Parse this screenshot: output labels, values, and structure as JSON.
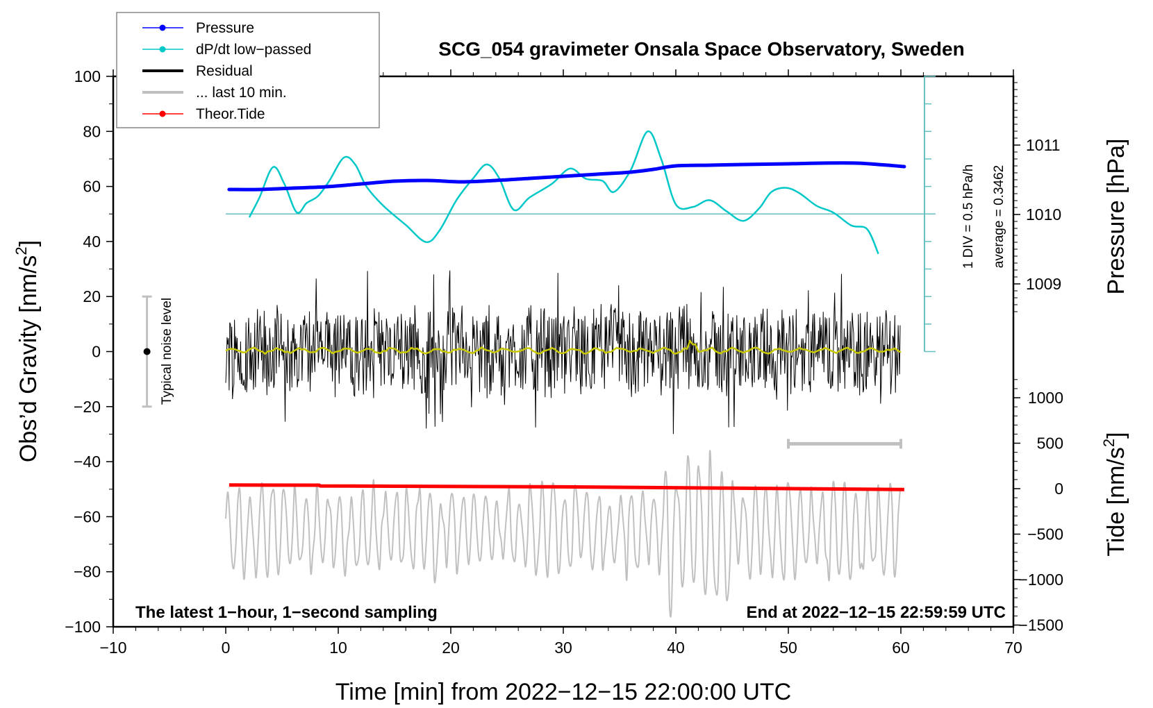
{
  "chart_data": {
    "type": "line",
    "title": "SCG_054 gravimeter Onsala Space Observatory, Sweden",
    "xlabel": "Time [min] from 2022−12−15 22:00:00 UTC",
    "ylabel_left": "Obs’d Gravity [nm/s²]",
    "ylabel_left_main": "Obs’d Gravity [nm/s",
    "ylabel_right_pressure": "Pressure [hPa]",
    "ylabel_right_tide_main": "Tide [nm/s",
    "ylabel_unit_sup": "2",
    "ylabel_unit_close": "]",
    "xlim": [
      -10,
      70
    ],
    "ylim_left": [
      -100,
      100
    ],
    "x_ticks": [
      "−10",
      "0",
      "10",
      "20",
      "30",
      "40",
      "50",
      "60",
      "70"
    ],
    "x_tick_values": [
      -10,
      0,
      10,
      20,
      30,
      40,
      50,
      60,
      70
    ],
    "y_ticks_left": [
      "100",
      "80",
      "60",
      "40",
      "20",
      "0",
      "−20",
      "−40",
      "−60",
      "−80",
      "−100"
    ],
    "y_tick_values_left": [
      100,
      80,
      60,
      40,
      20,
      0,
      -20,
      -40,
      -60,
      -80,
      -100
    ],
    "pressure_axis": {
      "ticks": [
        "1011",
        "1010",
        "1009"
      ],
      "values": [
        1011,
        1010,
        1009
      ],
      "anchor_left_value_for_1010": 50,
      "left_units_per_hPa": 25.22
    },
    "tide_axis": {
      "ticks": [
        "1000",
        "500",
        "0",
        "−500",
        "−1000",
        "−1500"
      ],
      "values": [
        1000,
        500,
        0,
        -500,
        -1000,
        -1500
      ],
      "range": [
        -1500,
        1500
      ]
    },
    "legend": {
      "placement": "top-left",
      "entries": [
        {
          "label": "Pressure",
          "color": "#0000ff",
          "marker": "dot"
        },
        {
          "label": "dP/dt low−passed",
          "color": "#00c8c8",
          "marker": "dot"
        },
        {
          "label": "Residual",
          "color": "#000000",
          "marker": "none"
        },
        {
          "label": "... last 10 min.",
          "color": "#c0c0c0",
          "marker": "none"
        },
        {
          "label": "Theor.Tide",
          "color": "#ff0000",
          "marker": "dot"
        }
      ]
    },
    "annotations": {
      "noise_label": "Typical noise level",
      "noise_level_nm_s2": 20,
      "div_label": "1 DIV = 0.5 hPa/h",
      "average_label": "average = 0.3462",
      "bottom_left": "The latest 1−hour, 1−second sampling",
      "bottom_right": "End at 2022−12−15 22:59:59 UTC",
      "last10_bar_min": [
        50,
        60
      ]
    },
    "series": [
      {
        "name": "Pressure",
        "unit": "hPa",
        "color": "#0000ff",
        "x": [
          0.3,
          3,
          6,
          9,
          12,
          15,
          18,
          21,
          24,
          27,
          30,
          33,
          36,
          38,
          40,
          43,
          46,
          50,
          53,
          56,
          58,
          60.3
        ],
        "values": [
          1010.36,
          1010.36,
          1010.38,
          1010.4,
          1010.44,
          1010.48,
          1010.49,
          1010.47,
          1010.49,
          1010.52,
          1010.55,
          1010.58,
          1010.61,
          1010.65,
          1010.7,
          1010.71,
          1010.72,
          1010.73,
          1010.74,
          1010.74,
          1010.72,
          1010.69
        ]
      },
      {
        "name": "dP/dt low-passed",
        "unit": "left-axis units (50 = 0 hPa/h, 10 units = 0.5 hPa/h)",
        "color": "#00c8c8",
        "x": [
          2.1,
          3.0,
          4.2,
          5.2,
          6.3,
          7.2,
          8.2,
          9.2,
          10.5,
          11.5,
          12.5,
          14.0,
          16.0,
          17.8,
          19.0,
          20.5,
          22.0,
          23.2,
          24.3,
          25.6,
          27.0,
          29.0,
          30.6,
          32.0,
          33.5,
          34.5,
          36.0,
          37.5,
          38.7,
          40.0,
          41.5,
          43.0,
          44.5,
          46.0,
          47.4,
          48.5,
          49.8,
          51.0,
          52.5,
          54.0,
          55.6,
          57.0,
          58.0
        ],
        "values": [
          48.8,
          56,
          67,
          61,
          50.6,
          54,
          56.5,
          62,
          70.5,
          68,
          60,
          53,
          46,
          39.8,
          44,
          55,
          63,
          68,
          63,
          51.5,
          56,
          61,
          66.5,
          62.8,
          62,
          58,
          66,
          80,
          70,
          53.5,
          52.5,
          55,
          51,
          47.5,
          52,
          58,
          59.5,
          57.5,
          53,
          50.5,
          45.8,
          44.5,
          35.5
        ]
      },
      {
        "name": "Residual",
        "unit": "nm/s²",
        "color": "#000000",
        "x_range": [
          0,
          60
        ],
        "envelope_typical": [
          -20,
          20
        ],
        "extremes": {
          "max": 35.5,
          "min": -38.5
        },
        "note": "1-second samples, noisy about 0"
      },
      {
        "name": "Residual smoothed",
        "unit": "nm/s²",
        "color": "#c8c800",
        "x": [
          0,
          10,
          20,
          30,
          40,
          41.5,
          50,
          60
        ],
        "values": [
          0,
          0.5,
          0.3,
          0.5,
          0,
          2.5,
          0.2,
          0
        ]
      },
      {
        "name": "... last 10 min.",
        "unit": "nm/s² (vertically offset, time-stretched ×6)",
        "color": "#c0c0c0",
        "x_range": [
          0,
          60
        ],
        "center_left_units": -65,
        "amplitude_left_units": 18
      },
      {
        "name": "Theor.Tide",
        "unit": "nm/s²",
        "color": "#ff0000",
        "x": [
          0.3,
          8.3,
          8.4,
          30,
          45,
          60.3
        ],
        "values": [
          40,
          38,
          30,
          20,
          5,
          -10
        ]
      }
    ]
  }
}
